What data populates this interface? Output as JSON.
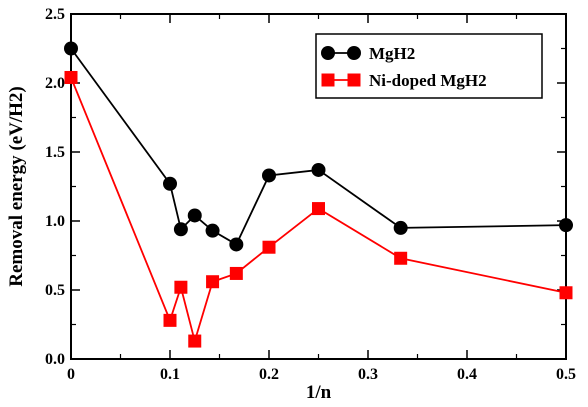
{
  "chart_data": {
    "type": "line",
    "title": "",
    "xlabel": "1/n",
    "ylabel": "Removal energy (eV/H2)",
    "xlim": [
      0,
      0.5
    ],
    "ylim": [
      0,
      2.5
    ],
    "x_ticks": [
      0,
      0.1,
      0.2,
      0.3,
      0.4,
      0.5
    ],
    "x_tick_labels": [
      "0",
      "0.1",
      "0.2",
      "0.3",
      "0.4",
      "0.5"
    ],
    "y_ticks": [
      0,
      0.5,
      1.0,
      1.5,
      2.0,
      2.5
    ],
    "y_tick_labels": [
      "0.0",
      "0.5",
      "1.0",
      "1.5",
      "2.0",
      "2.5"
    ],
    "grid": false,
    "legend_position": "top-right",
    "series": [
      {
        "name": "MgH2",
        "color": "#000000",
        "marker": "circle",
        "x": [
          0,
          0.1,
          0.111,
          0.125,
          0.143,
          0.167,
          0.2,
          0.25,
          0.333,
          0.5
        ],
        "y": [
          2.25,
          1.27,
          0.94,
          1.04,
          0.93,
          0.83,
          1.33,
          1.37,
          0.95,
          0.97
        ]
      },
      {
        "name": "Ni-doped MgH2",
        "color": "#ff0000",
        "marker": "square",
        "x": [
          0,
          0.1,
          0.111,
          0.125,
          0.143,
          0.167,
          0.2,
          0.25,
          0.333,
          0.5
        ],
        "y": [
          2.04,
          0.28,
          0.52,
          0.13,
          0.56,
          0.62,
          0.81,
          1.09,
          0.73,
          0.48
        ]
      }
    ]
  }
}
